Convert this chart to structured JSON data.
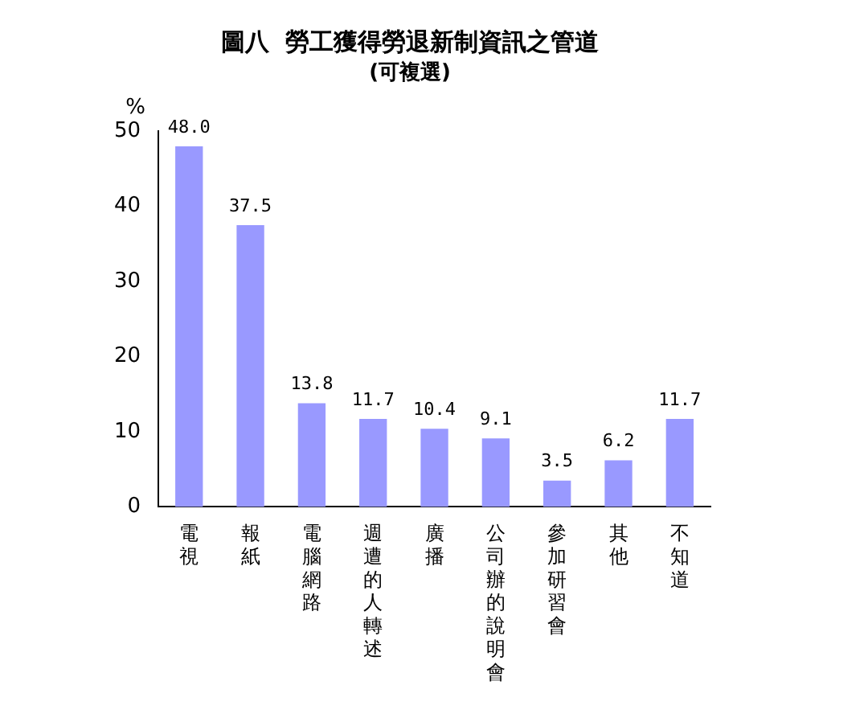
{
  "chart_data": {
    "type": "bar",
    "title": "圖八  勞工獲得勞退新制資訊之管道",
    "subtitle": "(可複選)",
    "ylabel": "%",
    "categories": [
      "電視",
      "報紙",
      "電腦網路",
      "週遭的人轉述",
      "廣播",
      "公司辦的說明會",
      "參加研習會",
      "其他",
      "不知道"
    ],
    "values": [
      48.0,
      37.5,
      13.8,
      11.7,
      10.4,
      9.1,
      3.5,
      6.2,
      11.7
    ],
    "value_labels": [
      "48.0",
      "37.5",
      "13.8",
      "11.7",
      "10.4",
      "9.1",
      "3.5",
      "6.2",
      "11.7"
    ],
    "color": "#9999ff",
    "ylim": [
      0,
      50
    ],
    "yticks": [
      0,
      10,
      20,
      30,
      40,
      50
    ],
    "grid": false,
    "legend": false
  }
}
